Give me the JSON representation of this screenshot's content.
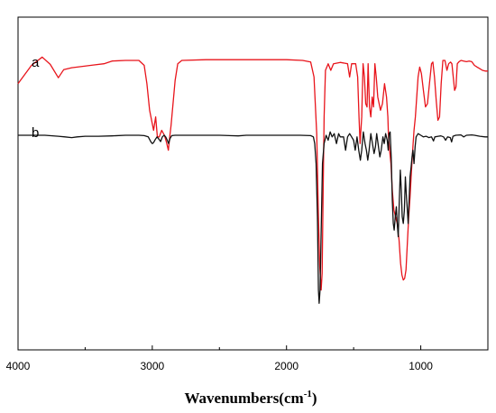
{
  "chart_data": {
    "type": "line",
    "title": "",
    "xlabel": "Wavenumbers(cm",
    "xlabel_sup": "-1",
    "xlabel_close": ")",
    "ylabel": "",
    "xlim": [
      4000,
      500
    ],
    "x_reversed": true,
    "ylim": [
      0,
      1
    ],
    "y_ticks_shown": false,
    "grid": false,
    "xticks": [
      4000,
      3000,
      2000,
      1000
    ],
    "xtick_labels": [
      "4000",
      "3000",
      "2000",
      "1000"
    ],
    "series": [
      {
        "name": "a",
        "color": "#e8141b",
        "points": [
          [
            4000,
            0.8
          ],
          [
            3900,
            0.855
          ],
          [
            3820,
            0.88
          ],
          [
            3760,
            0.858
          ],
          [
            3700,
            0.818
          ],
          [
            3660,
            0.842
          ],
          [
            3600,
            0.848
          ],
          [
            3520,
            0.852
          ],
          [
            3440,
            0.856
          ],
          [
            3360,
            0.86
          ],
          [
            3300,
            0.868
          ],
          [
            3200,
            0.87
          ],
          [
            3100,
            0.87
          ],
          [
            3060,
            0.855
          ],
          [
            3040,
            0.8
          ],
          [
            3020,
            0.72
          ],
          [
            3005,
            0.69
          ],
          [
            2990,
            0.66
          ],
          [
            2975,
            0.7
          ],
          [
            2962,
            0.64
          ],
          [
            2948,
            0.64
          ],
          [
            2930,
            0.66
          ],
          [
            2910,
            0.645
          ],
          [
            2895,
            0.625
          ],
          [
            2880,
            0.6
          ],
          [
            2870,
            0.64
          ],
          [
            2860,
            0.675
          ],
          [
            2850,
            0.72
          ],
          [
            2830,
            0.81
          ],
          [
            2810,
            0.86
          ],
          [
            2780,
            0.87
          ],
          [
            2600,
            0.872
          ],
          [
            2400,
            0.872
          ],
          [
            2200,
            0.872
          ],
          [
            2000,
            0.872
          ],
          [
            1880,
            0.87
          ],
          [
            1820,
            0.865
          ],
          [
            1795,
            0.82
          ],
          [
            1775,
            0.65
          ],
          [
            1762,
            0.4
          ],
          [
            1752,
            0.25
          ],
          [
            1742,
            0.18
          ],
          [
            1735,
            0.23
          ],
          [
            1728,
            0.45
          ],
          [
            1720,
            0.7
          ],
          [
            1710,
            0.84
          ],
          [
            1690,
            0.86
          ],
          [
            1670,
            0.84
          ],
          [
            1650,
            0.86
          ],
          [
            1600,
            0.864
          ],
          [
            1545,
            0.86
          ],
          [
            1530,
            0.82
          ],
          [
            1515,
            0.86
          ],
          [
            1485,
            0.86
          ],
          [
            1470,
            0.82
          ],
          [
            1460,
            0.7
          ],
          [
            1452,
            0.62
          ],
          [
            1440,
            0.7
          ],
          [
            1430,
            0.86
          ],
          [
            1420,
            0.82
          ],
          [
            1410,
            0.74
          ],
          [
            1400,
            0.73
          ],
          [
            1392,
            0.86
          ],
          [
            1382,
            0.73
          ],
          [
            1372,
            0.7
          ],
          [
            1362,
            0.76
          ],
          [
            1352,
            0.73
          ],
          [
            1342,
            0.86
          ],
          [
            1332,
            0.82
          ],
          [
            1320,
            0.76
          ],
          [
            1300,
            0.72
          ],
          [
            1285,
            0.74
          ],
          [
            1270,
            0.8
          ],
          [
            1255,
            0.76
          ],
          [
            1245,
            0.7
          ],
          [
            1240,
            0.64
          ],
          [
            1232,
            0.6
          ],
          [
            1222,
            0.56
          ],
          [
            1212,
            0.48
          ],
          [
            1200,
            0.42
          ],
          [
            1188,
            0.4
          ],
          [
            1175,
            0.38
          ],
          [
            1162,
            0.33
          ],
          [
            1150,
            0.26
          ],
          [
            1140,
            0.225
          ],
          [
            1130,
            0.21
          ],
          [
            1120,
            0.215
          ],
          [
            1110,
            0.24
          ],
          [
            1100,
            0.32
          ],
          [
            1090,
            0.4
          ],
          [
            1080,
            0.46
          ],
          [
            1072,
            0.52
          ],
          [
            1060,
            0.6
          ],
          [
            1050,
            0.66
          ],
          [
            1040,
            0.7
          ],
          [
            1030,
            0.76
          ],
          [
            1020,
            0.82
          ],
          [
            1008,
            0.85
          ],
          [
            995,
            0.83
          ],
          [
            980,
            0.78
          ],
          [
            965,
            0.73
          ],
          [
            950,
            0.74
          ],
          [
            935,
            0.8
          ],
          [
            920,
            0.86
          ],
          [
            910,
            0.865
          ],
          [
            898,
            0.82
          ],
          [
            885,
            0.75
          ],
          [
            872,
            0.69
          ],
          [
            860,
            0.7
          ],
          [
            848,
            0.8
          ],
          [
            835,
            0.87
          ],
          [
            820,
            0.87
          ],
          [
            805,
            0.84
          ],
          [
            792,
            0.86
          ],
          [
            778,
            0.865
          ],
          [
            768,
            0.86
          ],
          [
            758,
            0.82
          ],
          [
            748,
            0.78
          ],
          [
            738,
            0.79
          ],
          [
            728,
            0.86
          ],
          [
            715,
            0.866
          ],
          [
            700,
            0.87
          ],
          [
            680,
            0.868
          ],
          [
            660,
            0.866
          ],
          [
            640,
            0.868
          ],
          [
            620,
            0.866
          ],
          [
            600,
            0.855
          ],
          [
            580,
            0.85
          ],
          [
            560,
            0.845
          ],
          [
            540,
            0.84
          ],
          [
            520,
            0.838
          ],
          [
            500,
            0.838
          ]
        ]
      },
      {
        "name": "b",
        "color": "#111111",
        "points": [
          [
            4000,
            0.645
          ],
          [
            3800,
            0.645
          ],
          [
            3700,
            0.642
          ],
          [
            3650,
            0.64
          ],
          [
            3600,
            0.638
          ],
          [
            3560,
            0.64
          ],
          [
            3500,
            0.642
          ],
          [
            3400,
            0.642
          ],
          [
            3300,
            0.643
          ],
          [
            3200,
            0.645
          ],
          [
            3100,
            0.645
          ],
          [
            3060,
            0.644
          ],
          [
            3030,
            0.64
          ],
          [
            3010,
            0.625
          ],
          [
            3000,
            0.62
          ],
          [
            2990,
            0.623
          ],
          [
            2978,
            0.632
          ],
          [
            2965,
            0.64
          ],
          [
            2950,
            0.633
          ],
          [
            2938,
            0.626
          ],
          [
            2925,
            0.64
          ],
          [
            2912,
            0.645
          ],
          [
            2900,
            0.64
          ],
          [
            2888,
            0.63
          ],
          [
            2878,
            0.62
          ],
          [
            2868,
            0.635
          ],
          [
            2855,
            0.644
          ],
          [
            2830,
            0.645
          ],
          [
            2700,
            0.645
          ],
          [
            2500,
            0.645
          ],
          [
            2360,
            0.643
          ],
          [
            2300,
            0.645
          ],
          [
            2100,
            0.645
          ],
          [
            1900,
            0.645
          ],
          [
            1820,
            0.644
          ],
          [
            1800,
            0.64
          ],
          [
            1790,
            0.62
          ],
          [
            1780,
            0.56
          ],
          [
            1770,
            0.4
          ],
          [
            1762,
            0.18
          ],
          [
            1757,
            0.14
          ],
          [
            1750,
            0.18
          ],
          [
            1742,
            0.35
          ],
          [
            1732,
            0.56
          ],
          [
            1720,
            0.62
          ],
          [
            1705,
            0.645
          ],
          [
            1690,
            0.63
          ],
          [
            1675,
            0.655
          ],
          [
            1660,
            0.64
          ],
          [
            1645,
            0.65
          ],
          [
            1628,
            0.62
          ],
          [
            1612,
            0.65
          ],
          [
            1600,
            0.64
          ],
          [
            1575,
            0.64
          ],
          [
            1560,
            0.6
          ],
          [
            1545,
            0.64
          ],
          [
            1530,
            0.65
          ],
          [
            1515,
            0.64
          ],
          [
            1500,
            0.63
          ],
          [
            1488,
            0.6
          ],
          [
            1475,
            0.64
          ],
          [
            1462,
            0.6
          ],
          [
            1450,
            0.57
          ],
          [
            1440,
            0.6
          ],
          [
            1428,
            0.655
          ],
          [
            1415,
            0.62
          ],
          [
            1405,
            0.6
          ],
          [
            1395,
            0.57
          ],
          [
            1385,
            0.6
          ],
          [
            1372,
            0.65
          ],
          [
            1360,
            0.62
          ],
          [
            1348,
            0.59
          ],
          [
            1338,
            0.61
          ],
          [
            1328,
            0.65
          ],
          [
            1318,
            0.62
          ],
          [
            1305,
            0.58
          ],
          [
            1295,
            0.6
          ],
          [
            1282,
            0.64
          ],
          [
            1272,
            0.62
          ],
          [
            1262,
            0.65
          ],
          [
            1250,
            0.63
          ],
          [
            1242,
            0.6
          ],
          [
            1236,
            0.65
          ],
          [
            1228,
            0.655
          ],
          [
            1220,
            0.58
          ],
          [
            1212,
            0.45
          ],
          [
            1205,
            0.38
          ],
          [
            1198,
            0.36
          ],
          [
            1190,
            0.4
          ],
          [
            1182,
            0.43
          ],
          [
            1175,
            0.38
          ],
          [
            1168,
            0.34
          ],
          [
            1160,
            0.45
          ],
          [
            1152,
            0.54
          ],
          [
            1145,
            0.48
          ],
          [
            1138,
            0.4
          ],
          [
            1130,
            0.38
          ],
          [
            1122,
            0.42
          ],
          [
            1115,
            0.52
          ],
          [
            1108,
            0.47
          ],
          [
            1100,
            0.42
          ],
          [
            1094,
            0.38
          ],
          [
            1088,
            0.44
          ],
          [
            1080,
            0.52
          ],
          [
            1072,
            0.55
          ],
          [
            1065,
            0.58
          ],
          [
            1058,
            0.6
          ],
          [
            1050,
            0.56
          ],
          [
            1042,
            0.61
          ],
          [
            1035,
            0.64
          ],
          [
            1020,
            0.65
          ],
          [
            1000,
            0.645
          ],
          [
            980,
            0.64
          ],
          [
            960,
            0.642
          ],
          [
            940,
            0.638
          ],
          [
            920,
            0.64
          ],
          [
            905,
            0.628
          ],
          [
            895,
            0.64
          ],
          [
            870,
            0.642
          ],
          [
            850,
            0.643
          ],
          [
            830,
            0.64
          ],
          [
            815,
            0.63
          ],
          [
            800,
            0.64
          ],
          [
            780,
            0.638
          ],
          [
            770,
            0.625
          ],
          [
            760,
            0.642
          ],
          [
            740,
            0.645
          ],
          [
            700,
            0.646
          ],
          [
            680,
            0.64
          ],
          [
            660,
            0.645
          ],
          [
            620,
            0.646
          ],
          [
            600,
            0.645
          ],
          [
            560,
            0.642
          ],
          [
            520,
            0.64
          ],
          [
            500,
            0.64
          ]
        ]
      }
    ]
  }
}
